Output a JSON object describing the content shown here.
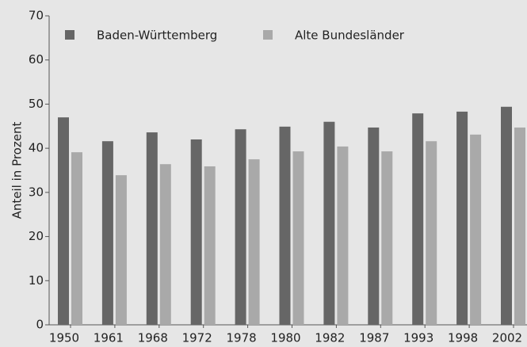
{
  "chart_data": {
    "type": "bar",
    "ylabel": "Anteil in Prozent",
    "categories": [
      "1950",
      "1961",
      "1968",
      "1972",
      "1978",
      "1980",
      "1982",
      "1987",
      "1993",
      "1998",
      "2002"
    ],
    "series": [
      {
        "name": "Baden-Württemberg",
        "color": "#666666",
        "values": [
          47.0,
          41.6,
          43.6,
          42.0,
          44.3,
          44.9,
          46.0,
          44.7,
          47.9,
          48.3,
          49.4
        ]
      },
      {
        "name": "Alte Bundesländer",
        "color": "#a9a9a9",
        "values": [
          39.1,
          33.9,
          36.4,
          35.9,
          37.5,
          39.3,
          40.4,
          39.3,
          41.6,
          43.1,
          44.7
        ]
      }
    ],
    "ylim": [
      0,
      70
    ],
    "yticks": [
      0,
      10,
      20,
      30,
      40,
      50,
      60,
      70
    ],
    "grid": false,
    "legend": "top"
  }
}
